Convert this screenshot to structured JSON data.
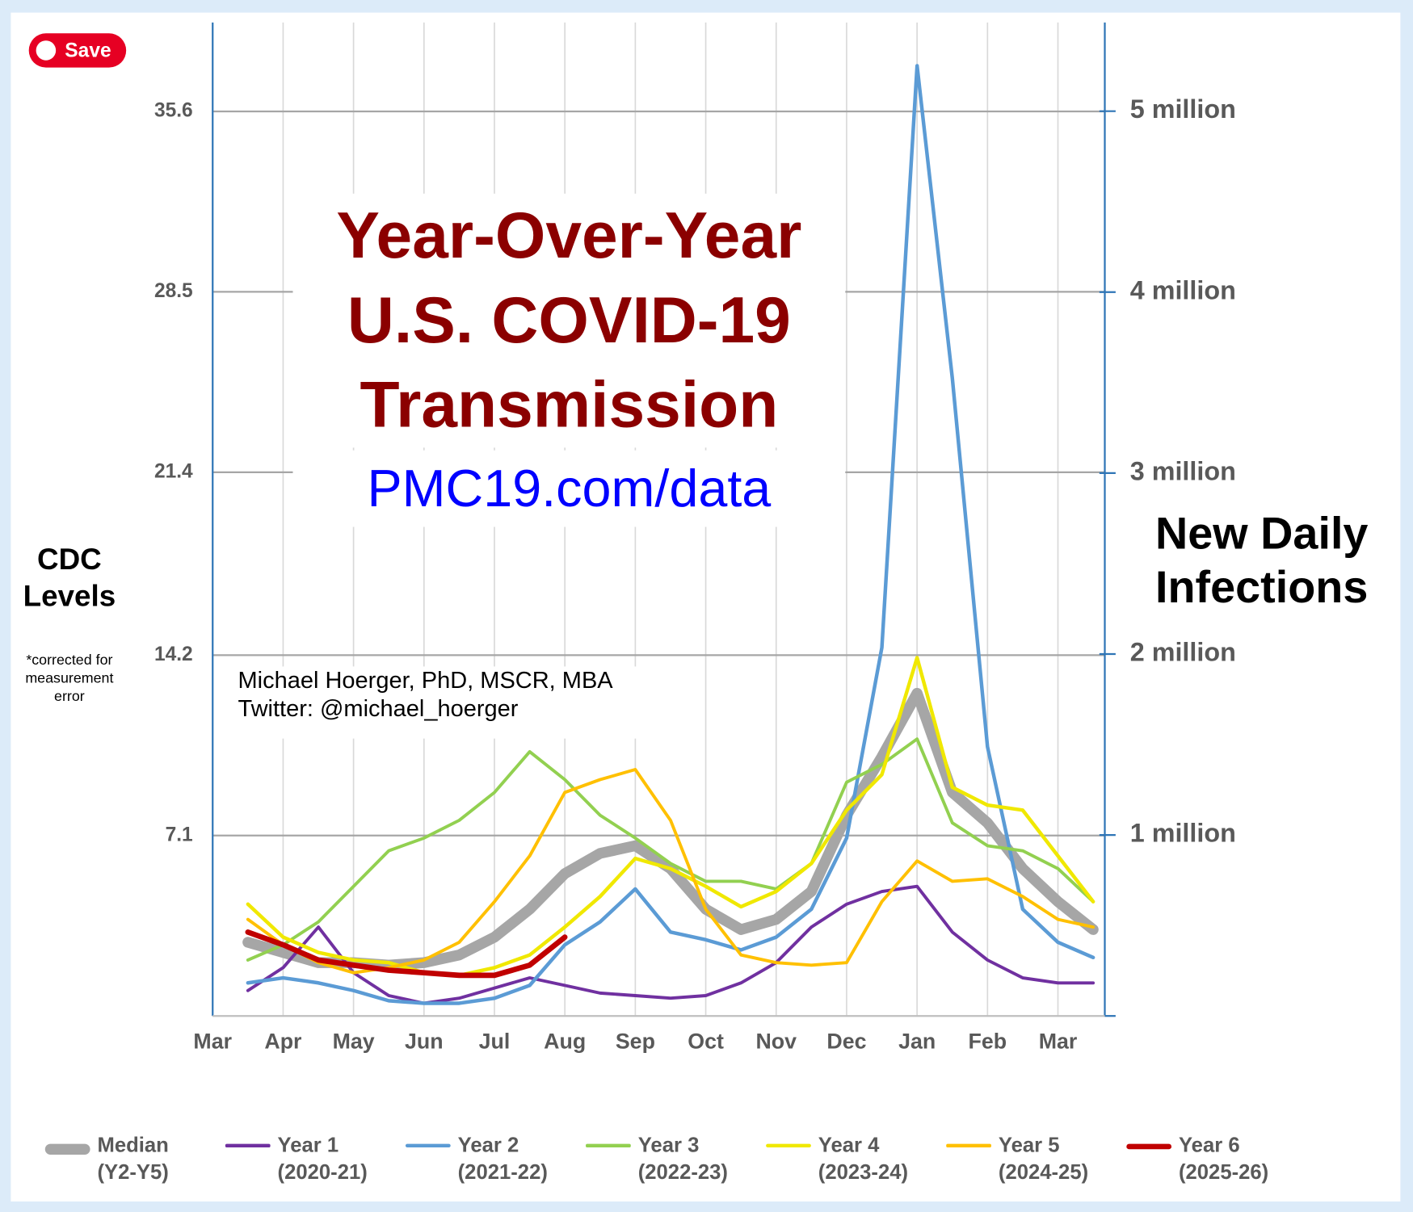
{
  "overlay": {
    "save_button": "Save"
  },
  "chart_data": {
    "type": "line",
    "title": [
      "Year-Over-Year",
      "U.S. COVID-19",
      "Transmission"
    ],
    "subtitle": "PMC19.com/data",
    "author": [
      "Michael Hoerger, PhD, MSCR, MBA",
      "Twitter: @michael_hoerger"
    ],
    "y_label": "CDC Levels",
    "y_note": "*corrected for measurement error",
    "y2_label": "New Daily Infections",
    "categories": [
      "Mar",
      null,
      "Apr",
      null,
      "May",
      null,
      "Jun",
      null,
      "Jul",
      null,
      "Aug",
      null,
      "Sep",
      null,
      "Oct",
      null,
      "Nov",
      null,
      "Dec",
      null,
      "Jan",
      null,
      "Feb",
      null,
      "Mar",
      null
    ],
    "ylim": [
      0,
      39.1
    ],
    "yticks": [
      7.1,
      14.2,
      21.4,
      28.5,
      35.6
    ],
    "y2lim": [
      0,
      5490000
    ],
    "y2ticks": [
      {
        "value": 1000000,
        "label": "1 million"
      },
      {
        "value": 2000000,
        "label": "2 million"
      },
      {
        "value": 3000000,
        "label": "3 million"
      },
      {
        "value": 4000000,
        "label": "4 million"
      },
      {
        "value": 5000000,
        "label": "5 million"
      }
    ],
    "grid": true,
    "legend": "bottom",
    "series": [
      {
        "name": "Median (Y2-Y5)",
        "color": "#a6a6a6",
        "width": 12,
        "values": [
          null,
          2.9,
          2.5,
          2.1,
          2.1,
          2.0,
          2.1,
          2.4,
          3.1,
          4.2,
          5.6,
          6.4,
          6.7,
          5.8,
          4.2,
          3.4,
          3.8,
          4.9,
          7.9,
          10.2,
          12.7,
          8.8,
          7.6,
          5.8,
          4.5,
          3.4
        ]
      },
      {
        "name": "Year 1 (2020-21)",
        "color": "#7030a0",
        "width": 3.5,
        "values": [
          null,
          1.0,
          1.9,
          3.5,
          1.7,
          0.8,
          0.5,
          0.7,
          1.1,
          1.5,
          1.2,
          0.9,
          0.8,
          0.7,
          0.8,
          1.3,
          2.1,
          3.5,
          4.4,
          4.9,
          5.1,
          3.3,
          2.2,
          1.5,
          1.3,
          1.3
        ]
      },
      {
        "name": "Year 2 (2021-22)",
        "color": "#5b9bd5",
        "width": 4,
        "values": [
          null,
          1.3,
          1.5,
          1.3,
          1.0,
          0.6,
          0.5,
          0.5,
          0.7,
          1.2,
          2.8,
          3.7,
          5.0,
          3.3,
          3.0,
          2.6,
          3.1,
          4.2,
          7.0,
          14.5,
          37.4,
          25.1,
          10.6,
          4.2,
          2.9,
          2.3
        ]
      },
      {
        "name": "Year 3 (2022-23)",
        "color": "#92d050",
        "width": 3.5,
        "values": [
          null,
          2.2,
          2.8,
          3.7,
          5.1,
          6.5,
          7.0,
          7.7,
          8.8,
          10.4,
          9.3,
          7.9,
          7.0,
          6.0,
          5.3,
          5.3,
          5.0,
          6.0,
          9.2,
          9.9,
          10.9,
          7.6,
          6.7,
          6.5,
          5.8,
          4.5
        ]
      },
      {
        "name": "Year 4 (2023-24)",
        "color": "#f0e800",
        "width": 4,
        "values": [
          null,
          4.4,
          3.1,
          2.5,
          2.2,
          2.1,
          1.7,
          1.6,
          1.9,
          2.4,
          3.5,
          4.7,
          6.2,
          5.8,
          5.1,
          4.3,
          4.9,
          6.0,
          8.1,
          9.5,
          14.1,
          9.0,
          8.3,
          8.1,
          6.3,
          4.5
        ]
      },
      {
        "name": "Year 5 (2024-25)",
        "color": "#ffc000",
        "width": 3.5,
        "values": [
          null,
          3.8,
          2.8,
          2.1,
          1.7,
          1.9,
          2.2,
          2.9,
          4.5,
          6.3,
          8.8,
          9.3,
          9.7,
          7.7,
          4.2,
          2.4,
          2.1,
          2.0,
          2.1,
          4.5,
          6.1,
          5.3,
          5.4,
          4.7,
          3.8,
          3.5
        ]
      },
      {
        "name": "Year 6 (2025-26)",
        "color": "#c00000",
        "width": 6,
        "values": [
          null,
          3.3,
          2.8,
          2.2,
          2.0,
          1.8,
          1.7,
          1.6,
          1.6,
          2.0,
          3.1,
          null,
          null,
          null,
          null,
          null,
          null,
          null,
          null,
          null,
          null,
          null,
          null,
          null,
          null,
          null
        ]
      }
    ]
  }
}
